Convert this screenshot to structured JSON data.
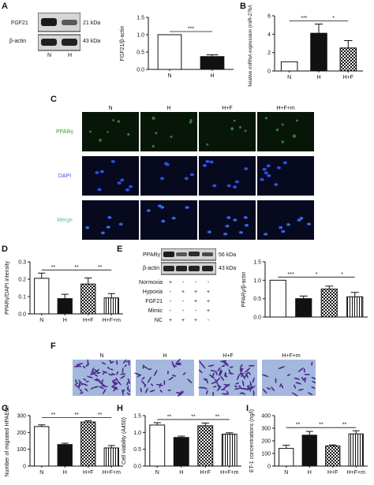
{
  "panel_labels": {
    "A": "A",
    "B": "B",
    "C": "C",
    "D": "D",
    "E": "E",
    "F": "F",
    "G": "G",
    "H": "H",
    "I": "I"
  },
  "blot_A": {
    "bands": [
      "FGF21",
      "β-actin"
    ],
    "sizes": [
      "21 kDa",
      "43 kDa"
    ],
    "lanes": [
      "N",
      "H"
    ]
  },
  "blot_E": {
    "bands": [
      "PPARγ",
      "β-actin"
    ],
    "sizes": [
      "56 kDa",
      "43 kDa"
    ]
  },
  "treatment_table": {
    "rows": [
      {
        "label": "Normoxia",
        "marks": [
          "+",
          "-",
          "-",
          "-"
        ]
      },
      {
        "label": "Hypoxia",
        "marks": [
          "-",
          "+",
          "+",
          "+"
        ]
      },
      {
        "label": "FGF21",
        "marks": [
          "-",
          "-",
          "+",
          "+"
        ]
      },
      {
        "label": "Mimic",
        "marks": [
          "-",
          "-",
          "-",
          "+"
        ]
      },
      {
        "label": "NC",
        "marks": [
          "+",
          "+",
          "+",
          "-"
        ]
      }
    ]
  },
  "micro_C": {
    "cols": [
      "N",
      "H",
      "H+F",
      "H+F+m"
    ],
    "rows": [
      "PPARγ",
      "DAPI",
      "Merge"
    ],
    "row_colors": [
      "#2ea82e",
      "#3a56e8",
      "#49c9a0"
    ]
  },
  "micro_F": {
    "cols": [
      "N",
      "H",
      "H+F",
      "H+F+m"
    ]
  },
  "colors": {
    "pparg_bg": "#08160a",
    "dapi_bg": "#07091f",
    "transwell_bg": "#a4b8de"
  },
  "chart_data": [
    {
      "id": "A",
      "type": "bar",
      "categories": [
        "N",
        "H"
      ],
      "values": [
        1.0,
        0.37
      ],
      "errors": [
        0,
        0.05
      ],
      "fills": [
        "white",
        "black"
      ],
      "ylabel": "FGF21/β-actin",
      "ylim": [
        0,
        1.5
      ],
      "yticks": [
        0.0,
        0.5,
        1.0,
        1.5
      ],
      "sig": [
        {
          "from": 0,
          "to": 1,
          "label": "***"
        }
      ]
    },
    {
      "id": "B",
      "type": "bar",
      "categories": [
        "N",
        "H",
        "H+F"
      ],
      "values": [
        1.0,
        4.1,
        2.5
      ],
      "errors": [
        0,
        1.0,
        0.8
      ],
      "fills": [
        "white",
        "black",
        "checker"
      ],
      "ylabel": "Relative miRNA expression (miR-27b/U6)",
      "ylim": [
        0,
        6
      ],
      "yticks": [
        0,
        2,
        4,
        6
      ],
      "sig": [
        {
          "from": 0,
          "to": 1,
          "label": "***"
        },
        {
          "from": 1,
          "to": 2,
          "label": "*"
        }
      ]
    },
    {
      "id": "D",
      "type": "bar",
      "categories": [
        "N",
        "H",
        "H+F",
        "H+F+m"
      ],
      "values": [
        0.205,
        0.088,
        0.172,
        0.092
      ],
      "errors": [
        0.03,
        0.025,
        0.035,
        0.025
      ],
      "fills": [
        "white",
        "black",
        "checker",
        "vstripe"
      ],
      "ylabel": "PPARγ/DAPI intensity",
      "ylim": [
        0,
        0.3
      ],
      "yticks": [
        0.0,
        0.1,
        0.2,
        0.3
      ],
      "sig": [
        {
          "from": 0,
          "to": 1,
          "label": "**"
        },
        {
          "from": 1,
          "to": 2,
          "label": "**"
        },
        {
          "from": 2,
          "to": 3,
          "label": "**"
        }
      ]
    },
    {
      "id": "E",
      "type": "bar",
      "categories": [
        "",
        "",
        "",
        ""
      ],
      "values": [
        1.0,
        0.5,
        0.76,
        0.55
      ],
      "errors": [
        0,
        0.07,
        0.08,
        0.12
      ],
      "fills": [
        "white",
        "black",
        "checker",
        "vstripe"
      ],
      "ylabel": "PPARγ/β-actin",
      "ylim": [
        0,
        1.5
      ],
      "yticks": [
        0.0,
        0.5,
        1.0,
        1.5
      ],
      "sig": [
        {
          "from": 0,
          "to": 1,
          "label": "***"
        },
        {
          "from": 1,
          "to": 2,
          "label": "*"
        },
        {
          "from": 2,
          "to": 3,
          "label": "*"
        }
      ]
    },
    {
      "id": "G",
      "type": "bar",
      "categories": [
        "N",
        "H",
        "H+F",
        "H+F+m"
      ],
      "values": [
        235,
        128,
        262,
        108
      ],
      "errors": [
        10,
        8,
        8,
        14
      ],
      "fills": [
        "white",
        "black",
        "checker",
        "vstripe"
      ],
      "ylabel": "Number of migrated HPAECs",
      "ylim": [
        0,
        300
      ],
      "yticks": [
        0,
        100,
        200,
        300
      ],
      "sig": [
        {
          "from": 0,
          "to": 1,
          "label": "**"
        },
        {
          "from": 1,
          "to": 2,
          "label": "**"
        },
        {
          "from": 2,
          "to": 3,
          "label": "**"
        }
      ]
    },
    {
      "id": "H",
      "type": "bar",
      "categories": [
        "N",
        "H",
        "H+F",
        "H+F+m"
      ],
      "values": [
        1.22,
        0.85,
        1.2,
        0.95
      ],
      "errors": [
        0.07,
        0.04,
        0.08,
        0.04
      ],
      "fills": [
        "white",
        "black",
        "checker",
        "vstripe"
      ],
      "ylabel": "Cell viability (A450)",
      "ylim": [
        0,
        1.5
      ],
      "yticks": [
        0.0,
        0.5,
        1.0,
        1.5
      ],
      "sig": [
        {
          "from": 0,
          "to": 1,
          "label": "**"
        },
        {
          "from": 1,
          "to": 2,
          "label": "**"
        },
        {
          "from": 2,
          "to": 3,
          "label": "**"
        }
      ]
    },
    {
      "id": "I",
      "type": "bar",
      "categories": [
        "N",
        "H",
        "H+F",
        "H+F+m"
      ],
      "values": [
        140,
        245,
        160,
        255
      ],
      "errors": [
        25,
        30,
        8,
        25
      ],
      "fills": [
        "white",
        "black",
        "checker",
        "vstripe"
      ],
      "ylabel": "ET-1 concentrations (ng/l)",
      "ylim": [
        0,
        400
      ],
      "yticks": [
        0,
        100,
        200,
        300,
        400
      ],
      "sig": [
        {
          "from": 0,
          "to": 1,
          "label": "**"
        },
        {
          "from": 1,
          "to": 2,
          "label": "**"
        },
        {
          "from": 2,
          "to": 3,
          "label": "**"
        }
      ]
    }
  ]
}
